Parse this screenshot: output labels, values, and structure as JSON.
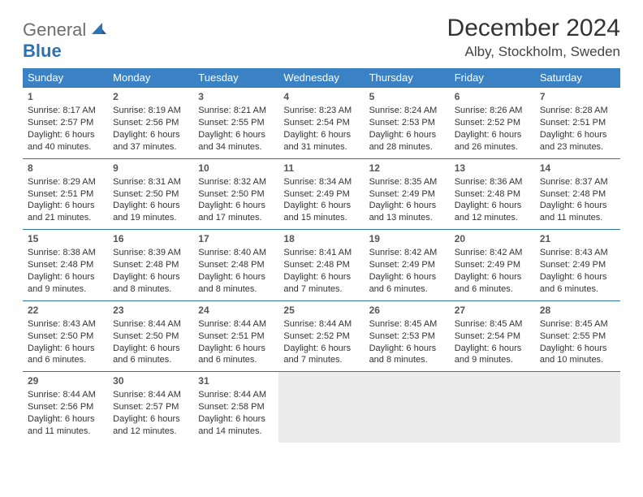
{
  "logo": {
    "word1": "General",
    "word2": "Blue"
  },
  "title": "December 2024",
  "location": "Alby, Stockholm, Sweden",
  "colors": {
    "header_bg": "#3b82c4",
    "header_text": "#ffffff",
    "cell_border": "#2d72b5",
    "empty_bg": "#ececec",
    "logo_gray": "#6d6e71",
    "logo_blue": "#2d72b5",
    "page_bg": "#ffffff"
  },
  "typography": {
    "title_fontsize": 30,
    "location_fontsize": 17,
    "dayhead_fontsize": 13,
    "cell_fontsize": 11,
    "daynum_fontsize": 12
  },
  "day_headers": [
    "Sunday",
    "Monday",
    "Tuesday",
    "Wednesday",
    "Thursday",
    "Friday",
    "Saturday"
  ],
  "weeks": [
    [
      {
        "n": "1",
        "sr": "Sunrise: 8:17 AM",
        "ss": "Sunset: 2:57 PM",
        "d1": "Daylight: 6 hours",
        "d2": "and 40 minutes."
      },
      {
        "n": "2",
        "sr": "Sunrise: 8:19 AM",
        "ss": "Sunset: 2:56 PM",
        "d1": "Daylight: 6 hours",
        "d2": "and 37 minutes."
      },
      {
        "n": "3",
        "sr": "Sunrise: 8:21 AM",
        "ss": "Sunset: 2:55 PM",
        "d1": "Daylight: 6 hours",
        "d2": "and 34 minutes."
      },
      {
        "n": "4",
        "sr": "Sunrise: 8:23 AM",
        "ss": "Sunset: 2:54 PM",
        "d1": "Daylight: 6 hours",
        "d2": "and 31 minutes."
      },
      {
        "n": "5",
        "sr": "Sunrise: 8:24 AM",
        "ss": "Sunset: 2:53 PM",
        "d1": "Daylight: 6 hours",
        "d2": "and 28 minutes."
      },
      {
        "n": "6",
        "sr": "Sunrise: 8:26 AM",
        "ss": "Sunset: 2:52 PM",
        "d1": "Daylight: 6 hours",
        "d2": "and 26 minutes."
      },
      {
        "n": "7",
        "sr": "Sunrise: 8:28 AM",
        "ss": "Sunset: 2:51 PM",
        "d1": "Daylight: 6 hours",
        "d2": "and 23 minutes."
      }
    ],
    [
      {
        "n": "8",
        "sr": "Sunrise: 8:29 AM",
        "ss": "Sunset: 2:51 PM",
        "d1": "Daylight: 6 hours",
        "d2": "and 21 minutes."
      },
      {
        "n": "9",
        "sr": "Sunrise: 8:31 AM",
        "ss": "Sunset: 2:50 PM",
        "d1": "Daylight: 6 hours",
        "d2": "and 19 minutes."
      },
      {
        "n": "10",
        "sr": "Sunrise: 8:32 AM",
        "ss": "Sunset: 2:50 PM",
        "d1": "Daylight: 6 hours",
        "d2": "and 17 minutes."
      },
      {
        "n": "11",
        "sr": "Sunrise: 8:34 AM",
        "ss": "Sunset: 2:49 PM",
        "d1": "Daylight: 6 hours",
        "d2": "and 15 minutes."
      },
      {
        "n": "12",
        "sr": "Sunrise: 8:35 AM",
        "ss": "Sunset: 2:49 PM",
        "d1": "Daylight: 6 hours",
        "d2": "and 13 minutes."
      },
      {
        "n": "13",
        "sr": "Sunrise: 8:36 AM",
        "ss": "Sunset: 2:48 PM",
        "d1": "Daylight: 6 hours",
        "d2": "and 12 minutes."
      },
      {
        "n": "14",
        "sr": "Sunrise: 8:37 AM",
        "ss": "Sunset: 2:48 PM",
        "d1": "Daylight: 6 hours",
        "d2": "and 11 minutes."
      }
    ],
    [
      {
        "n": "15",
        "sr": "Sunrise: 8:38 AM",
        "ss": "Sunset: 2:48 PM",
        "d1": "Daylight: 6 hours",
        "d2": "and 9 minutes."
      },
      {
        "n": "16",
        "sr": "Sunrise: 8:39 AM",
        "ss": "Sunset: 2:48 PM",
        "d1": "Daylight: 6 hours",
        "d2": "and 8 minutes."
      },
      {
        "n": "17",
        "sr": "Sunrise: 8:40 AM",
        "ss": "Sunset: 2:48 PM",
        "d1": "Daylight: 6 hours",
        "d2": "and 8 minutes."
      },
      {
        "n": "18",
        "sr": "Sunrise: 8:41 AM",
        "ss": "Sunset: 2:48 PM",
        "d1": "Daylight: 6 hours",
        "d2": "and 7 minutes."
      },
      {
        "n": "19",
        "sr": "Sunrise: 8:42 AM",
        "ss": "Sunset: 2:49 PM",
        "d1": "Daylight: 6 hours",
        "d2": "and 6 minutes."
      },
      {
        "n": "20",
        "sr": "Sunrise: 8:42 AM",
        "ss": "Sunset: 2:49 PM",
        "d1": "Daylight: 6 hours",
        "d2": "and 6 minutes."
      },
      {
        "n": "21",
        "sr": "Sunrise: 8:43 AM",
        "ss": "Sunset: 2:49 PM",
        "d1": "Daylight: 6 hours",
        "d2": "and 6 minutes."
      }
    ],
    [
      {
        "n": "22",
        "sr": "Sunrise: 8:43 AM",
        "ss": "Sunset: 2:50 PM",
        "d1": "Daylight: 6 hours",
        "d2": "and 6 minutes."
      },
      {
        "n": "23",
        "sr": "Sunrise: 8:44 AM",
        "ss": "Sunset: 2:50 PM",
        "d1": "Daylight: 6 hours",
        "d2": "and 6 minutes."
      },
      {
        "n": "24",
        "sr": "Sunrise: 8:44 AM",
        "ss": "Sunset: 2:51 PM",
        "d1": "Daylight: 6 hours",
        "d2": "and 6 minutes."
      },
      {
        "n": "25",
        "sr": "Sunrise: 8:44 AM",
        "ss": "Sunset: 2:52 PM",
        "d1": "Daylight: 6 hours",
        "d2": "and 7 minutes."
      },
      {
        "n": "26",
        "sr": "Sunrise: 8:45 AM",
        "ss": "Sunset: 2:53 PM",
        "d1": "Daylight: 6 hours",
        "d2": "and 8 minutes."
      },
      {
        "n": "27",
        "sr": "Sunrise: 8:45 AM",
        "ss": "Sunset: 2:54 PM",
        "d1": "Daylight: 6 hours",
        "d2": "and 9 minutes."
      },
      {
        "n": "28",
        "sr": "Sunrise: 8:45 AM",
        "ss": "Sunset: 2:55 PM",
        "d1": "Daylight: 6 hours",
        "d2": "and 10 minutes."
      }
    ],
    [
      {
        "n": "29",
        "sr": "Sunrise: 8:44 AM",
        "ss": "Sunset: 2:56 PM",
        "d1": "Daylight: 6 hours",
        "d2": "and 11 minutes."
      },
      {
        "n": "30",
        "sr": "Sunrise: 8:44 AM",
        "ss": "Sunset: 2:57 PM",
        "d1": "Daylight: 6 hours",
        "d2": "and 12 minutes."
      },
      {
        "n": "31",
        "sr": "Sunrise: 8:44 AM",
        "ss": "Sunset: 2:58 PM",
        "d1": "Daylight: 6 hours",
        "d2": "and 14 minutes."
      },
      null,
      null,
      null,
      null
    ]
  ]
}
